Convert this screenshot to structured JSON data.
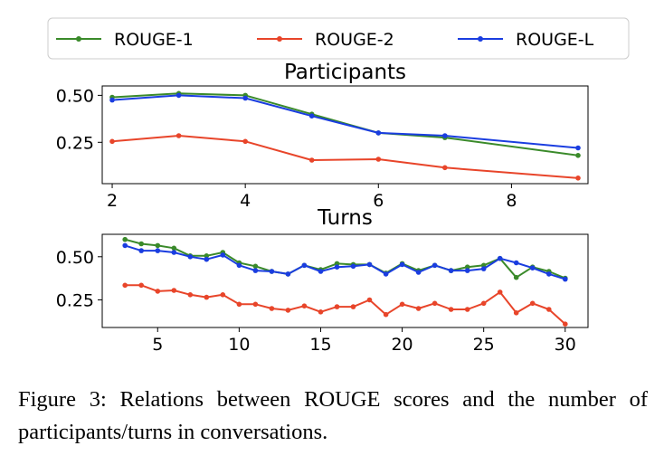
{
  "legend": [
    {
      "name": "ROUGE-1",
      "color": "#3a8a2a"
    },
    {
      "name": "ROUGE-2",
      "color": "#e8452a"
    },
    {
      "name": "ROUGE-L",
      "color": "#1a3de0"
    }
  ],
  "chart_data": [
    {
      "type": "line",
      "title": "Participants",
      "xlabel": "",
      "ylabel": "",
      "xlim": [
        1.85,
        9.15
      ],
      "ylim": [
        0.03,
        0.55
      ],
      "xticks": [
        2,
        4,
        6,
        8
      ],
      "yticks": [
        0.25,
        0.5
      ],
      "x": [
        2,
        3,
        4,
        5,
        6,
        7,
        9
      ],
      "series": [
        {
          "name": "ROUGE-1",
          "color": "#3a8a2a",
          "values": [
            0.49,
            0.51,
            0.5,
            0.4,
            0.3,
            0.275,
            0.18
          ]
        },
        {
          "name": "ROUGE-2",
          "color": "#e8452a",
          "values": [
            0.255,
            0.285,
            0.255,
            0.155,
            0.16,
            0.115,
            0.06
          ]
        },
        {
          "name": "ROUGE-L",
          "color": "#1a3de0",
          "values": [
            0.475,
            0.5,
            0.485,
            0.39,
            0.3,
            0.285,
            0.22
          ]
        }
      ],
      "grid": false
    },
    {
      "type": "line",
      "title": "Turns",
      "xlabel": "",
      "ylabel": "",
      "xlim": [
        1.6,
        31.4
      ],
      "ylim": [
        0.09,
        0.63
      ],
      "xticks": [
        5,
        10,
        15,
        20,
        25,
        30
      ],
      "yticks": [
        0.25,
        0.5
      ],
      "x": [
        3,
        4,
        5,
        6,
        7,
        8,
        9,
        10,
        11,
        12,
        13,
        14,
        15,
        16,
        17,
        18,
        19,
        20,
        21,
        22,
        23,
        24,
        25,
        26,
        27,
        28,
        29,
        30
      ],
      "series": [
        {
          "name": "ROUGE-1",
          "color": "#3a8a2a",
          "values": [
            0.6,
            0.575,
            0.565,
            0.55,
            0.505,
            0.505,
            0.525,
            0.465,
            0.445,
            0.415,
            0.4,
            0.45,
            0.425,
            0.46,
            0.455,
            0.455,
            0.405,
            0.46,
            0.42,
            0.45,
            0.42,
            0.44,
            0.45,
            0.49,
            0.38,
            0.44,
            0.415,
            0.375
          ]
        },
        {
          "name": "ROUGE-2",
          "color": "#e8452a",
          "values": [
            0.335,
            0.335,
            0.3,
            0.305,
            0.28,
            0.265,
            0.28,
            0.225,
            0.225,
            0.2,
            0.19,
            0.215,
            0.18,
            0.21,
            0.21,
            0.25,
            0.165,
            0.225,
            0.2,
            0.23,
            0.195,
            0.195,
            0.23,
            0.295,
            0.175,
            0.23,
            0.195,
            0.11
          ]
        },
        {
          "name": "ROUGE-L",
          "color": "#1a3de0",
          "values": [
            0.565,
            0.535,
            0.535,
            0.525,
            0.5,
            0.485,
            0.51,
            0.45,
            0.42,
            0.415,
            0.4,
            0.45,
            0.415,
            0.44,
            0.445,
            0.455,
            0.4,
            0.455,
            0.41,
            0.45,
            0.42,
            0.42,
            0.43,
            0.49,
            0.465,
            0.435,
            0.4,
            0.37
          ]
        }
      ],
      "grid": false
    }
  ],
  "caption": "Figure 3:  Relations between ROUGE scores and the number of participants/turns in conversations."
}
